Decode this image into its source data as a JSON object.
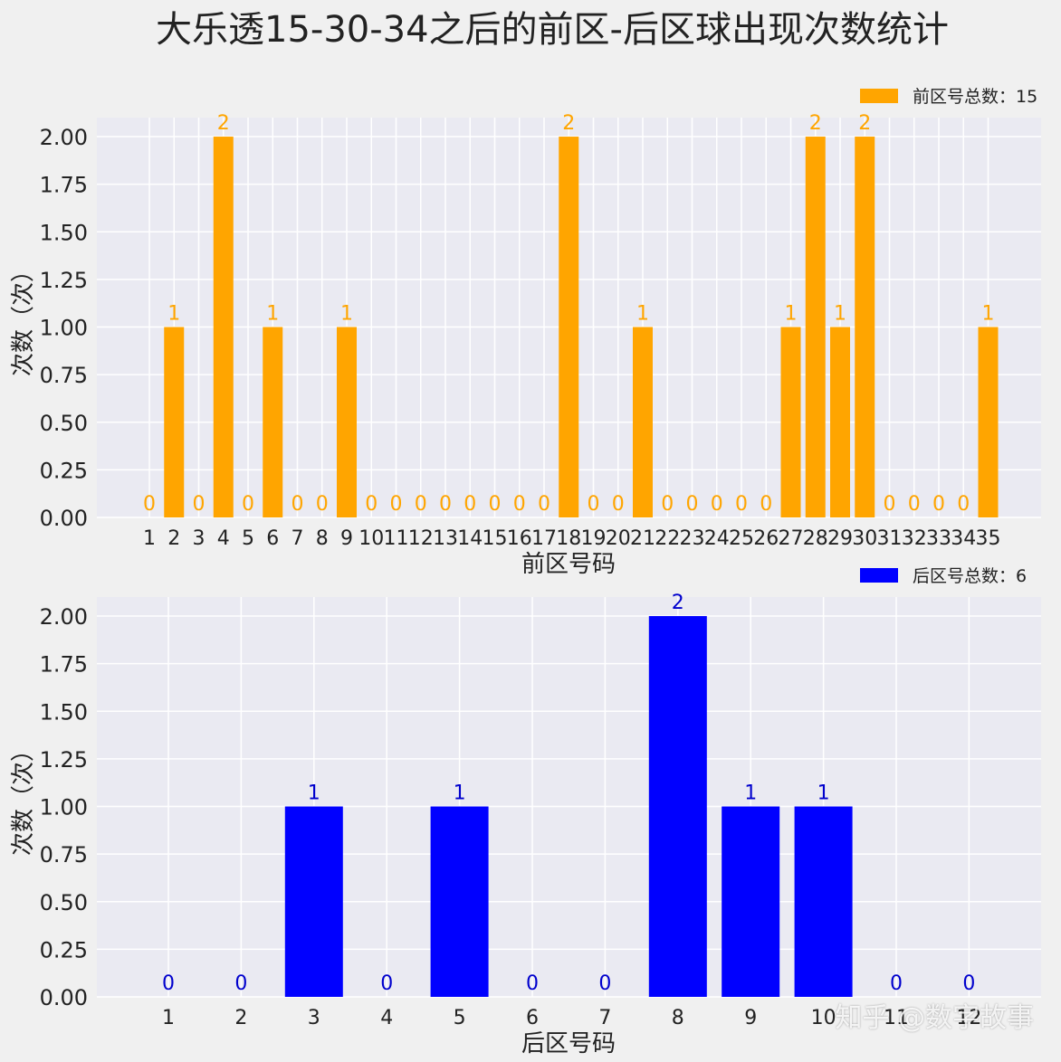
{
  "title": "大乐透15-30-34之后的前区-后区球出现次数统计",
  "watermark": "知乎 @数字故事",
  "chart_data": [
    {
      "type": "bar",
      "color": "#ffa500",
      "legend": "前区号总数：15",
      "legend_position": "top-right",
      "xlabel": "前区号码",
      "ylabel": "次数（次）",
      "ylim": [
        0,
        2.1
      ],
      "yticks": [
        "0.00",
        "0.25",
        "0.50",
        "0.75",
        "1.00",
        "1.25",
        "1.50",
        "1.75",
        "2.00"
      ],
      "grid": true,
      "categories": [
        "1",
        "2",
        "3",
        "4",
        "5",
        "6",
        "7",
        "8",
        "9",
        "10",
        "11",
        "12",
        "13",
        "14",
        "15",
        "16",
        "17",
        "18",
        "19",
        "20",
        "21",
        "22",
        "23",
        "24",
        "25",
        "26",
        "27",
        "28",
        "29",
        "30",
        "31",
        "32",
        "33",
        "34",
        "35"
      ],
      "values": [
        0,
        1,
        0,
        2,
        0,
        1,
        0,
        0,
        1,
        0,
        0,
        0,
        0,
        0,
        0,
        0,
        0,
        2,
        0,
        0,
        1,
        0,
        0,
        0,
        0,
        0,
        1,
        2,
        1,
        2,
        0,
        0,
        0,
        0,
        1
      ],
      "labels": [
        "0",
        "1",
        "0",
        "2",
        "0",
        "1",
        "0",
        "0",
        "1",
        "0",
        "0",
        "0",
        "0",
        "0",
        "0",
        "0",
        "0",
        "2",
        "0",
        "0",
        "1",
        "0",
        "0",
        "0",
        "0",
        "0",
        "1",
        "2",
        "1",
        "2",
        "0",
        "0",
        "0",
        "0",
        "1"
      ]
    },
    {
      "type": "bar",
      "color": "#0000ff",
      "label_color": "#0000cd",
      "legend": "后区号总数：6",
      "legend_position": "top-right",
      "xlabel": "后区号码",
      "ylabel": "次数（次）",
      "ylim": [
        0,
        2.1
      ],
      "yticks": [
        "0.00",
        "0.25",
        "0.50",
        "0.75",
        "1.00",
        "1.25",
        "1.50",
        "1.75",
        "2.00"
      ],
      "grid": true,
      "categories": [
        "1",
        "2",
        "3",
        "4",
        "5",
        "6",
        "7",
        "8",
        "9",
        "10",
        "11",
        "12"
      ],
      "values": [
        0,
        0,
        1,
        0,
        1,
        0,
        0,
        2,
        1,
        1,
        0,
        0
      ],
      "labels": [
        "0",
        "0",
        "1",
        "0",
        "1",
        "0",
        "0",
        "2",
        "1",
        "1",
        "0",
        "0"
      ]
    }
  ]
}
